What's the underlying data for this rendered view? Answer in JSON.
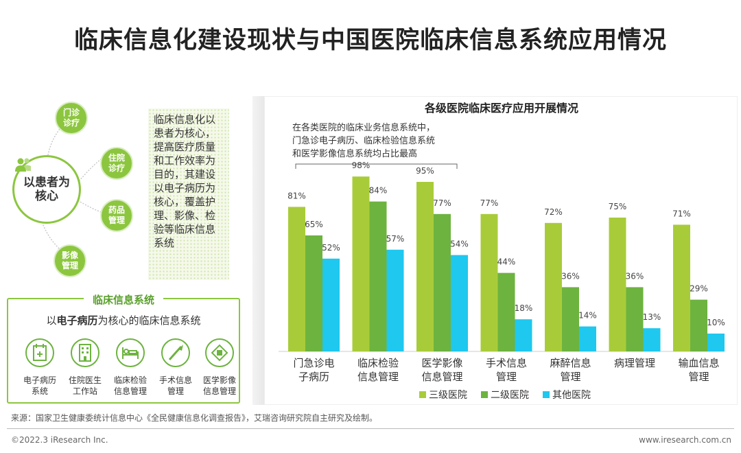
{
  "page": {
    "title": "临床信息化建设现状与中国医院临床信息系统应用情况",
    "source": "来源：国家卫生健康委统计信息中心《全民健康信息化调查报告》，艾瑞咨询研究院自主研究及绘制。",
    "copyright": "©2022.3 iResearch Inc.",
    "website": "www.iresearch.com.cn"
  },
  "diagram": {
    "center_line1": "以患者为",
    "center_line2": "核心",
    "nodes": [
      {
        "line1": "门诊",
        "line2": "诊疗"
      },
      {
        "line1": "住院",
        "line2": "诊疗"
      },
      {
        "line1": "药品",
        "line2": "管理"
      },
      {
        "line1": "影像",
        "line2": "管理"
      }
    ],
    "description": "临床信息化以患者为核心，提高医疗质量和工作效率为目的，其建设以电子病历为核心，覆盖护理、影像、检验等临床信息系统"
  },
  "system_box": {
    "title": "临床信息系统",
    "sub_prefix": "以",
    "sub_bold": "电子病历",
    "sub_suffix": "为核心的临床信息系统",
    "items": [
      {
        "line1": "电子病历",
        "line2": "系统",
        "icon": "medical-record-icon"
      },
      {
        "line1": "住院医生",
        "line2": "工作站",
        "icon": "hospital-building-icon"
      },
      {
        "line1": "临床检验",
        "line2": "信息管理",
        "icon": "hospital-bed-icon"
      },
      {
        "line1": "手术信息",
        "line2": "管理",
        "icon": "scalpel-icon"
      },
      {
        "line1": "医学影像",
        "line2": "信息管理",
        "icon": "scanner-icon"
      }
    ]
  },
  "colors": {
    "series1": "#a8cc39",
    "series2": "#6db33f",
    "series3": "#1ec8ef",
    "accent_green": "#8cc63f"
  },
  "chart_data": {
    "type": "bar",
    "title": "各级医院临床医疗应用开展情况",
    "annotation": [
      "在各类医院的临床业务信息系统中，",
      "门急诊电子病历、临床检验信息系统",
      "和医学影像信息系统均占比最高"
    ],
    "categories": [
      [
        "门急诊电",
        "子病历"
      ],
      [
        "临床检验",
        "信息管理"
      ],
      [
        "医学影像",
        "信息管理"
      ],
      [
        "手术信息",
        "管理"
      ],
      [
        "麻醉信息",
        "管理"
      ],
      [
        "病理管理"
      ],
      [
        "输血信息",
        "管理"
      ]
    ],
    "series": [
      {
        "name": "三级医院",
        "values": [
          81,
          98,
          95,
          77,
          72,
          75,
          71
        ]
      },
      {
        "name": "二级医院",
        "values": [
          65,
          84,
          77,
          44,
          36,
          36,
          29
        ]
      },
      {
        "name": "其他医院",
        "values": [
          52,
          57,
          54,
          18,
          14,
          13,
          10
        ]
      }
    ],
    "value_suffix": "%",
    "ylim": [
      0,
      100
    ],
    "grid": false,
    "legend_position": "bottom"
  }
}
